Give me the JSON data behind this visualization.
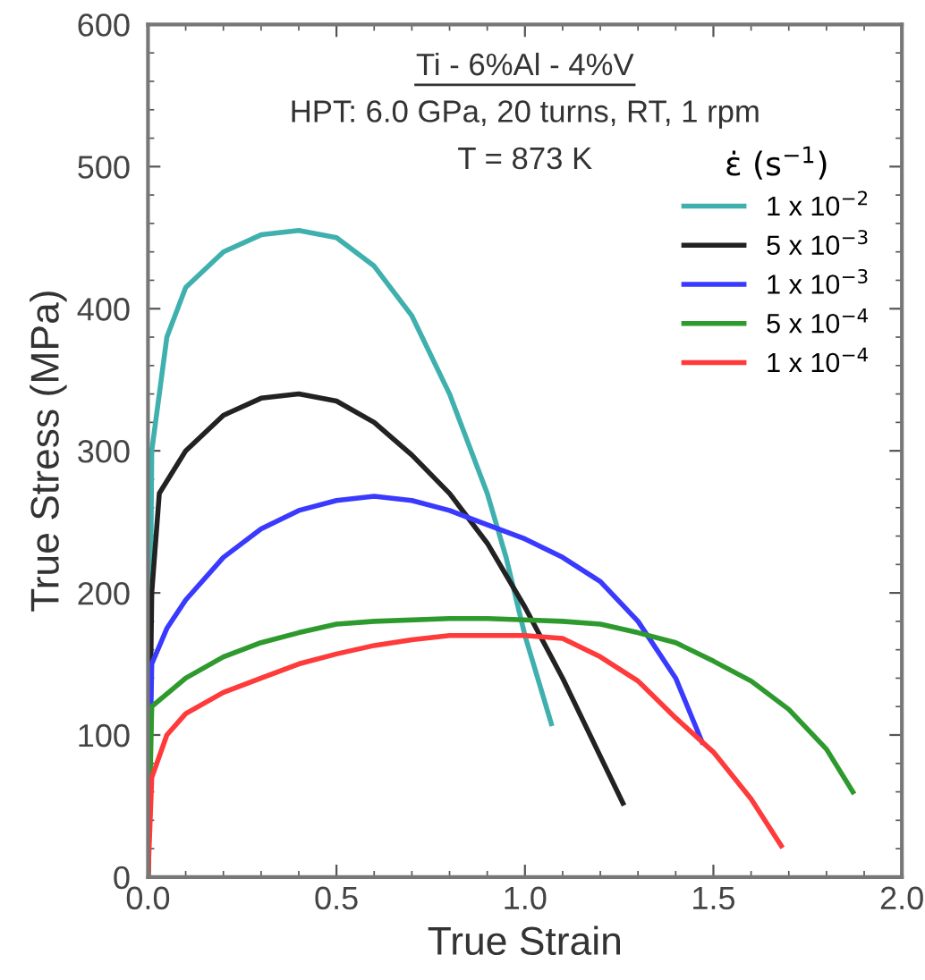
{
  "chart_data": {
    "type": "line",
    "xlabel": "True Strain",
    "ylabel": "True Stress (MPa)",
    "annotations": [
      "Ti - 6%Al - 4%V",
      "HPT: 6.0 GPa, 20 turns, RT, 1 rpm",
      "T = 873 K"
    ],
    "legend_title": "ε̇ (s$^{−1}$)",
    "legend": "right",
    "grid": false,
    "marker": "none",
    "line_style": "solid",
    "xlim": [
      0,
      2.0
    ],
    "xticks": [
      {
        "value": 0,
        "label": "0.0"
      },
      0.5,
      {
        "value": 1,
        "label": "1.0"
      },
      1.5,
      {
        "value": 2,
        "label": "2.0"
      }
    ],
    "ylim": [
      0,
      600
    ],
    "yticks": [
      0,
      100,
      200,
      300,
      400,
      500,
      600
    ],
    "series": [
      {
        "name": "1 x 10$^{−2}$",
        "color": "#3fb0ae",
        "x": [
          0,
          0.01,
          0.05,
          0.1,
          0.2,
          0.3,
          0.4,
          0.5,
          0.6,
          0.7,
          0.8,
          0.9,
          0.95,
          1.0,
          1.07
        ],
        "values": [
          0,
          300,
          380,
          415,
          440,
          452,
          455,
          450,
          430,
          395,
          340,
          270,
          225,
          170,
          108
        ]
      },
      {
        "name": "5 x 10$^{−3}$",
        "color": "#222222",
        "x": [
          0,
          0.01,
          0.03,
          0.1,
          0.2,
          0.3,
          0.4,
          0.5,
          0.6,
          0.7,
          0.8,
          0.9,
          1.0,
          1.1,
          1.2,
          1.26
        ],
        "values": [
          0,
          200,
          270,
          300,
          325,
          337,
          340,
          335,
          320,
          297,
          270,
          235,
          190,
          140,
          85,
          52
        ]
      },
      {
        "name": "1 x 10$^{−3}$",
        "color": "#3a3aff",
        "x": [
          0,
          0.01,
          0.05,
          0.1,
          0.2,
          0.3,
          0.4,
          0.5,
          0.6,
          0.7,
          0.8,
          0.9,
          1.0,
          1.1,
          1.2,
          1.3,
          1.4,
          1.47
        ],
        "values": [
          0,
          150,
          175,
          195,
          225,
          245,
          258,
          265,
          268,
          265,
          258,
          248,
          238,
          225,
          208,
          180,
          140,
          95
        ]
      },
      {
        "name": "5 x 10$^{−4}$",
        "color": "#2e9a2e",
        "x": [
          0,
          0.01,
          0.1,
          0.2,
          0.3,
          0.4,
          0.5,
          0.6,
          0.8,
          0.9,
          1.0,
          1.1,
          1.2,
          1.3,
          1.4,
          1.5,
          1.6,
          1.7,
          1.8,
          1.87
        ],
        "values": [
          0,
          120,
          140,
          155,
          165,
          172,
          178,
          180,
          182,
          182,
          181,
          180,
          178,
          172,
          165,
          152,
          138,
          118,
          90,
          60
        ]
      },
      {
        "name": "1 x 10$^{−4}$",
        "color": "#ff3a3a",
        "x": [
          0,
          0.01,
          0.05,
          0.1,
          0.2,
          0.3,
          0.4,
          0.5,
          0.6,
          0.7,
          0.8,
          0.9,
          1.0,
          1.1,
          1.2,
          1.3,
          1.4,
          1.5,
          1.6,
          1.68
        ],
        "values": [
          0,
          70,
          100,
          115,
          130,
          140,
          150,
          157,
          163,
          167,
          170,
          170,
          170,
          168,
          155,
          138,
          112,
          88,
          55,
          22
        ]
      }
    ]
  }
}
